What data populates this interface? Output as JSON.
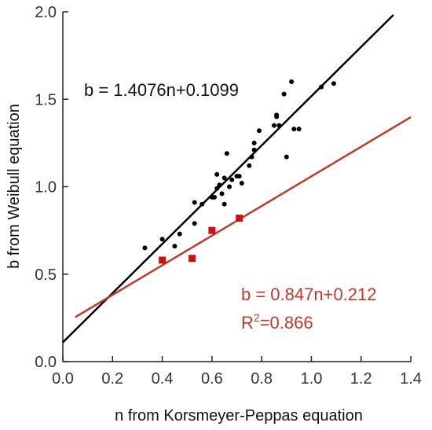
{
  "chart_data": {
    "type": "scatter",
    "title": "",
    "xlabel": "n from Korsmeyer-Peppas equation",
    "ylabel": "b from Weibull equation",
    "xlim": [
      0.0,
      1.4
    ],
    "ylim": [
      0.0,
      2.0
    ],
    "x_ticks": [
      "0.0",
      "0.2",
      "0.4",
      "0.6",
      "0.8",
      "1.0",
      "1.2",
      "1.4"
    ],
    "y_ticks": [
      "0.0",
      "0.5",
      "1.0",
      "1.5",
      "2.0"
    ],
    "grid": false,
    "colors": {
      "black_series": "#000000",
      "red_series": "#c0392b",
      "red_marker": "#cc1111"
    },
    "series": [
      {
        "marker": "circle",
        "color": "#000000",
        "points": [
          [
            0.33,
            0.65
          ],
          [
            0.4,
            0.7
          ],
          [
            0.45,
            0.66
          ],
          [
            0.47,
            0.73
          ],
          [
            0.53,
            0.79
          ],
          [
            0.53,
            0.91
          ],
          [
            0.56,
            0.9
          ],
          [
            0.6,
            0.94
          ],
          [
            0.61,
            0.94
          ],
          [
            0.62,
            0.99
          ],
          [
            0.62,
            1.07
          ],
          [
            0.63,
            1.01
          ],
          [
            0.64,
            0.96
          ],
          [
            0.65,
            0.9
          ],
          [
            0.65,
            1.05
          ],
          [
            0.66,
            1.19
          ],
          [
            0.67,
            1.0
          ],
          [
            0.68,
            1.04
          ],
          [
            0.7,
            1.06
          ],
          [
            0.71,
            1.06
          ],
          [
            0.72,
            1.02
          ],
          [
            0.75,
            1.12
          ],
          [
            0.76,
            1.17
          ],
          [
            0.77,
            1.21
          ],
          [
            0.77,
            1.25
          ],
          [
            0.79,
            1.32
          ],
          [
            0.85,
            1.35
          ],
          [
            0.86,
            1.4
          ],
          [
            0.86,
            1.41
          ],
          [
            0.87,
            1.35
          ],
          [
            0.89,
            1.53
          ],
          [
            0.9,
            1.17
          ],
          [
            0.92,
            1.6
          ],
          [
            0.93,
            1.33
          ],
          [
            0.95,
            1.33
          ],
          [
            1.04,
            1.57
          ],
          [
            1.09,
            1.59
          ]
        ]
      },
      {
        "marker": "square",
        "color": "#cc1111",
        "points": [
          [
            0.4,
            0.58
          ],
          [
            0.52,
            0.59
          ],
          [
            0.6,
            0.75
          ],
          [
            0.71,
            0.82
          ]
        ]
      }
    ],
    "fit_lines": [
      {
        "equation": "b = 1.4076n+0.1099",
        "slope": 1.4076,
        "intercept": 0.1099,
        "x_range": [
          0.0,
          1.33
        ],
        "color": "#000000"
      },
      {
        "equation": "b = 0.847n+0.212",
        "r2_prefix": "R",
        "r2_sup": "2",
        "r2_value": "=0.866",
        "slope": 0.847,
        "intercept": 0.212,
        "x_range": [
          0.05,
          1.4
        ],
        "color": "#c0392b"
      }
    ]
  }
}
